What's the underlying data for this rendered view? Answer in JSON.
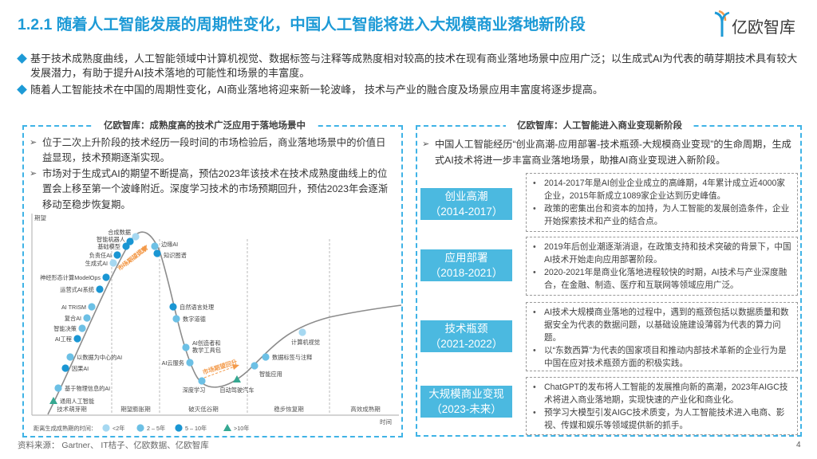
{
  "header": {
    "title": "1.2.1 随着人工智能发展的周期性变化，中国人工智能将进入大规模商业落地新阶段",
    "logo_text": "亿欧智库"
  },
  "bullets": [
    "基于技术成熟度曲线，人工智能领域中计算机视觉、数据标签与注释等成熟度相对较高的技术在现有商业落地场景中应用广泛；以生成式AI为代表的萌芽期技术具有较大发展潜力，有助于提升AI技术落地的可能性和场景的丰富度。",
    "随着人工智能技术在中国的周期性变化，AI商业落地将迎来新一轮波峰， 技术与产业的融合度及场景应用丰富度将逐步提高。"
  ],
  "left_panel": {
    "title": "亿欧智库：成熟度高的技术广泛应用于落地场景中",
    "points": [
      "位于二次上升阶段的技术经历一段时间的市场检验后，商业落地场景中的价值日益显现，技术预期逐渐实现。",
      "市场对于生成式AI的期望不断提高，预估2023年该技术在技术成熟度曲线上的位置会上移至第一个波峰附近。深度学习技术的市场预期回升，预估2023年会逐渐移动至稳步恢复期。"
    ]
  },
  "hype_cycle": {
    "y_label": "期望",
    "x_label": "时间",
    "phases": [
      "技术萌芽期",
      "期望膨胀期",
      "破灭低谷期",
      "稳步恢复期",
      "高效成熟期"
    ],
    "arrow_up_label": "市场期望提高",
    "arrow_recover_label": "市场期望回升",
    "legend_title": "距离生成成熟期的时间：",
    "legend": [
      {
        "key": "lt2",
        "label": "<2年",
        "color": "#a6d8f1",
        "shape": "circle"
      },
      {
        "key": "2to5",
        "label": "2 – 5年",
        "color": "#6cc0e5",
        "shape": "circle"
      },
      {
        "key": "5to10",
        "label": "5 – 10年",
        "color": "#1a96d3",
        "shape": "circle"
      },
      {
        "key": "gt10",
        "label": ">10年",
        "color": "#35a891",
        "shape": "triangle"
      }
    ],
    "technologies": [
      {
        "name": "通用人工智能",
        "maturity": "gt10"
      },
      {
        "name": "基于物理信息的AI",
        "maturity": "2to5"
      },
      {
        "name": "因果AI",
        "maturity": "5to10"
      },
      {
        "name": "以数据为中心的AI",
        "maturity": "2to5"
      },
      {
        "name": "AI工程",
        "maturity": "5to10"
      },
      {
        "name": "智能决策",
        "maturity": "2to5"
      },
      {
        "name": "复合AI",
        "maturity": "2to5"
      },
      {
        "name": "AI TRISM",
        "maturity": "2to5"
      },
      {
        "name": "运营式AI系统",
        "maturity": "5to10"
      },
      {
        "name": "神经形态计算ModelOps",
        "maturity": "5to10"
      },
      {
        "name": "生成式AI",
        "maturity": "lt2"
      },
      {
        "name": "负责任AI",
        "maturity": "5to10"
      },
      {
        "name": "基础模型",
        "maturity": "5to10"
      },
      {
        "name": "智能机器人",
        "maturity": "5to10"
      },
      {
        "name": "合成数据",
        "maturity": "lt2"
      },
      {
        "name": "边缘AI",
        "maturity": "2to5"
      },
      {
        "name": "知识图谱",
        "maturity": "5to10"
      },
      {
        "name": "自然语言处理",
        "maturity": "5to10"
      },
      {
        "name": "数字道德",
        "maturity": "2to5"
      },
      {
        "name": "AI创造者和教学工具包",
        "maturity": "2to5"
      },
      {
        "name": "AI云服务",
        "maturity": "2to5"
      },
      {
        "name": "深度学习",
        "maturity": "2to5"
      },
      {
        "name": "自动驾驶汽车",
        "maturity": "gt10"
      },
      {
        "name": "智能应用",
        "maturity": "2to5"
      },
      {
        "name": "数据标签与注释",
        "maturity": "2to5"
      },
      {
        "name": "计算机视觉",
        "maturity": "lt2"
      }
    ]
  },
  "right_panel": {
    "title": "亿欧智库：人工智能进入商业变现新阶段",
    "intro": "中国人工智能经历“创业高潮-应用部署-技术瓶颈-大规模商业变现”的生命周期，生成式AI技术将进一步丰富商业落地场景，助推AI商业变现进入新阶段。",
    "stages": [
      {
        "name": "创业高潮",
        "period": "（2014-2017）",
        "details": [
          "2014-2017年是AI创业企业成立的高峰期，4年累计成立近4000家企业，2015年新成立1089家企业达到历史峰值。",
          "政策的密集出台和资本的加持，为人工智能的发展创造条件，企业开始探索技术和产业的结合点。"
        ]
      },
      {
        "name": "应用部署",
        "period": "（2018-2021）",
        "details": [
          "2019年后创业潮逐渐消退，在政策支持和技术突破的背景下，中国AI技术开始走向应用部署阶段。",
          "2020-2021年是商业化落地进程较快的时期，AI技术与产业深度融合，在金融、制造、医疗和互联网等领域应用广泛。"
        ]
      },
      {
        "name": "技术瓶颈",
        "period": "（2021-2022）",
        "details": [
          "AI技术大规模商业落地的过程中，遇到的瓶颈包括以数据质量和数据安全为代表的数据问题，以基础设施建设薄弱为代表的算力问题。",
          "以“东数西算”为代表的国家项目和推动内部技术革新的企业行为是中国在应对技术瓶颈方面的积极实践。"
        ]
      },
      {
        "name": "大规模商业变现",
        "period": "（2023-未来）",
        "details": [
          "ChatGPT的发布将人工智能的发展推向新的高潮，2023年AIGC技术将进入商业落地期，实现快速的产业化和商业化。",
          "预学习大模型引发AIGC技术质变，为人工智能技术进入电商、影视、传媒和娱乐等领域提供新的抓手。"
        ]
      }
    ]
  },
  "footer": {
    "source": "资料来源： Gartner、 IT桔子、亿欧数据、亿欧智库",
    "page_number": "4"
  },
  "colors": {
    "accent": "#1d9ad6",
    "stage_fill": "#4bb9e0",
    "arrow": "#f39a4a",
    "curve": "#8c8c8c"
  }
}
